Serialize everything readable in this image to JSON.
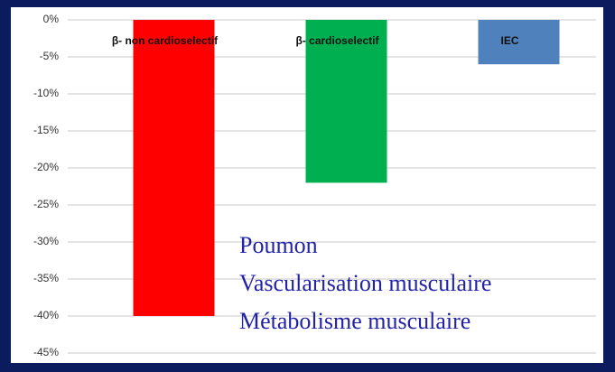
{
  "chart_data": {
    "type": "bar",
    "categories": [
      "β- non cardioselectif",
      "β- cardioselectif",
      "IEC"
    ],
    "values": [
      -40,
      -22,
      -6
    ],
    "colors": [
      "#ff0000",
      "#00b050",
      "#4f81bd"
    ],
    "ylim": [
      -45,
      0
    ],
    "yticks": [
      {
        "value": 0,
        "label": "0%"
      },
      {
        "value": -5,
        "label": "-5%"
      },
      {
        "value": -10,
        "label": "-10%"
      },
      {
        "value": -15,
        "label": "-15%"
      },
      {
        "value": -20,
        "label": "-20%"
      },
      {
        "value": -25,
        "label": "-25%"
      },
      {
        "value": -30,
        "label": "-30%"
      },
      {
        "value": -35,
        "label": "-35%"
      },
      {
        "value": -40,
        "label": "-40%"
      },
      {
        "value": -45,
        "label": "-45%"
      }
    ],
    "grid": true,
    "annotations": [
      "Poumon",
      "Vascularisation musculaire",
      "Métabolisme musculaire"
    ]
  }
}
